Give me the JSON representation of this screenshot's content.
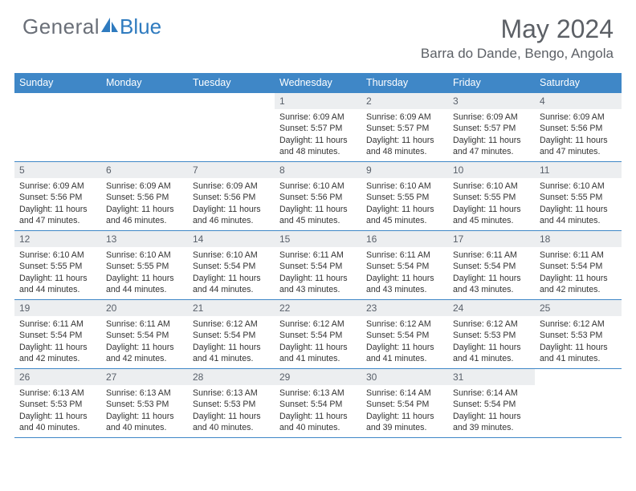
{
  "brand": {
    "text1": "General",
    "text2": "Blue"
  },
  "title": {
    "month": "May 2024",
    "location": "Barra do Dande, Bengo, Angola"
  },
  "colors": {
    "header_bg": "#3f87c7",
    "header_text": "#ffffff",
    "daynum_bg": "#eceef0",
    "daynum_text": "#59606a",
    "border": "#3f87c7",
    "brand_gray": "#6a6f78",
    "brand_blue": "#2f7bbf",
    "body_text": "#333333"
  },
  "weekdays": [
    "Sunday",
    "Monday",
    "Tuesday",
    "Wednesday",
    "Thursday",
    "Friday",
    "Saturday"
  ],
  "firstDayIndex": 3,
  "days": [
    {
      "n": 1,
      "sr": "6:09 AM",
      "ss": "5:57 PM",
      "dl": "11 hours and 48 minutes."
    },
    {
      "n": 2,
      "sr": "6:09 AM",
      "ss": "5:57 PM",
      "dl": "11 hours and 48 minutes."
    },
    {
      "n": 3,
      "sr": "6:09 AM",
      "ss": "5:57 PM",
      "dl": "11 hours and 47 minutes."
    },
    {
      "n": 4,
      "sr": "6:09 AM",
      "ss": "5:56 PM",
      "dl": "11 hours and 47 minutes."
    },
    {
      "n": 5,
      "sr": "6:09 AM",
      "ss": "5:56 PM",
      "dl": "11 hours and 47 minutes."
    },
    {
      "n": 6,
      "sr": "6:09 AM",
      "ss": "5:56 PM",
      "dl": "11 hours and 46 minutes."
    },
    {
      "n": 7,
      "sr": "6:09 AM",
      "ss": "5:56 PM",
      "dl": "11 hours and 46 minutes."
    },
    {
      "n": 8,
      "sr": "6:10 AM",
      "ss": "5:56 PM",
      "dl": "11 hours and 45 minutes."
    },
    {
      "n": 9,
      "sr": "6:10 AM",
      "ss": "5:55 PM",
      "dl": "11 hours and 45 minutes."
    },
    {
      "n": 10,
      "sr": "6:10 AM",
      "ss": "5:55 PM",
      "dl": "11 hours and 45 minutes."
    },
    {
      "n": 11,
      "sr": "6:10 AM",
      "ss": "5:55 PM",
      "dl": "11 hours and 44 minutes."
    },
    {
      "n": 12,
      "sr": "6:10 AM",
      "ss": "5:55 PM",
      "dl": "11 hours and 44 minutes."
    },
    {
      "n": 13,
      "sr": "6:10 AM",
      "ss": "5:55 PM",
      "dl": "11 hours and 44 minutes."
    },
    {
      "n": 14,
      "sr": "6:10 AM",
      "ss": "5:54 PM",
      "dl": "11 hours and 44 minutes."
    },
    {
      "n": 15,
      "sr": "6:11 AM",
      "ss": "5:54 PM",
      "dl": "11 hours and 43 minutes."
    },
    {
      "n": 16,
      "sr": "6:11 AM",
      "ss": "5:54 PM",
      "dl": "11 hours and 43 minutes."
    },
    {
      "n": 17,
      "sr": "6:11 AM",
      "ss": "5:54 PM",
      "dl": "11 hours and 43 minutes."
    },
    {
      "n": 18,
      "sr": "6:11 AM",
      "ss": "5:54 PM",
      "dl": "11 hours and 42 minutes."
    },
    {
      "n": 19,
      "sr": "6:11 AM",
      "ss": "5:54 PM",
      "dl": "11 hours and 42 minutes."
    },
    {
      "n": 20,
      "sr": "6:11 AM",
      "ss": "5:54 PM",
      "dl": "11 hours and 42 minutes."
    },
    {
      "n": 21,
      "sr": "6:12 AM",
      "ss": "5:54 PM",
      "dl": "11 hours and 41 minutes."
    },
    {
      "n": 22,
      "sr": "6:12 AM",
      "ss": "5:54 PM",
      "dl": "11 hours and 41 minutes."
    },
    {
      "n": 23,
      "sr": "6:12 AM",
      "ss": "5:54 PM",
      "dl": "11 hours and 41 minutes."
    },
    {
      "n": 24,
      "sr": "6:12 AM",
      "ss": "5:53 PM",
      "dl": "11 hours and 41 minutes."
    },
    {
      "n": 25,
      "sr": "6:12 AM",
      "ss": "5:53 PM",
      "dl": "11 hours and 41 minutes."
    },
    {
      "n": 26,
      "sr": "6:13 AM",
      "ss": "5:53 PM",
      "dl": "11 hours and 40 minutes."
    },
    {
      "n": 27,
      "sr": "6:13 AM",
      "ss": "5:53 PM",
      "dl": "11 hours and 40 minutes."
    },
    {
      "n": 28,
      "sr": "6:13 AM",
      "ss": "5:53 PM",
      "dl": "11 hours and 40 minutes."
    },
    {
      "n": 29,
      "sr": "6:13 AM",
      "ss": "5:54 PM",
      "dl": "11 hours and 40 minutes."
    },
    {
      "n": 30,
      "sr": "6:14 AM",
      "ss": "5:54 PM",
      "dl": "11 hours and 39 minutes."
    },
    {
      "n": 31,
      "sr": "6:14 AM",
      "ss": "5:54 PM",
      "dl": "11 hours and 39 minutes."
    }
  ],
  "labels": {
    "sunrise": "Sunrise:",
    "sunset": "Sunset:",
    "daylight": "Daylight:"
  }
}
